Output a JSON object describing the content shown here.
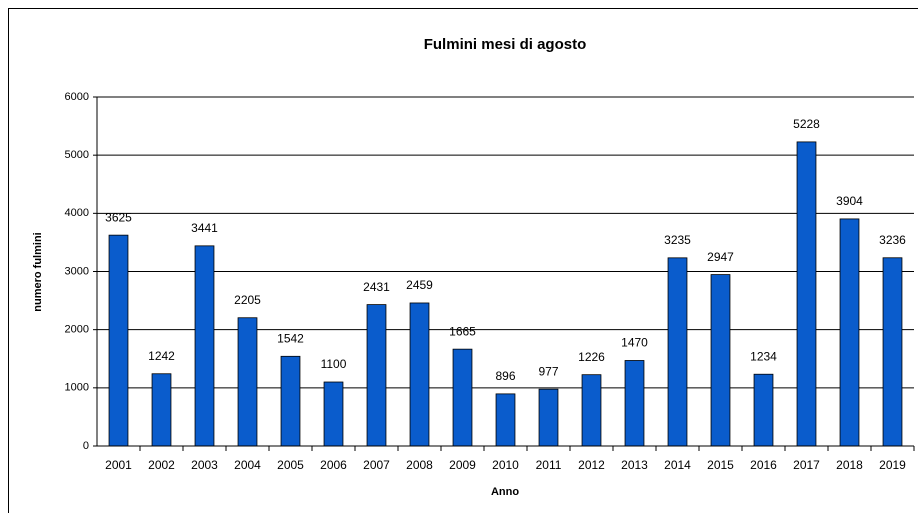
{
  "chart_data": {
    "type": "bar",
    "title": "Fulmini mesi di agosto",
    "x_label": "Anno",
    "y_label": "numero fulmini",
    "categories": [
      "2001",
      "2002",
      "2003",
      "2004",
      "2005",
      "2006",
      "2007",
      "2008",
      "2009",
      "2010",
      "2011",
      "2012",
      "2013",
      "2014",
      "2015",
      "2016",
      "2017",
      "2018",
      "2019"
    ],
    "values": [
      3625,
      1242,
      3441,
      2205,
      1542,
      1100,
      2431,
      2459,
      1665,
      896,
      977,
      1226,
      1470,
      3235,
      2947,
      1234,
      5228,
      3904,
      3236
    ],
    "color": "#0a5ccc",
    "ylim": [
      0,
      6000
    ],
    "yticks": [
      0,
      1000,
      2000,
      3000,
      4000,
      5000,
      6000
    ],
    "grid": true
  }
}
